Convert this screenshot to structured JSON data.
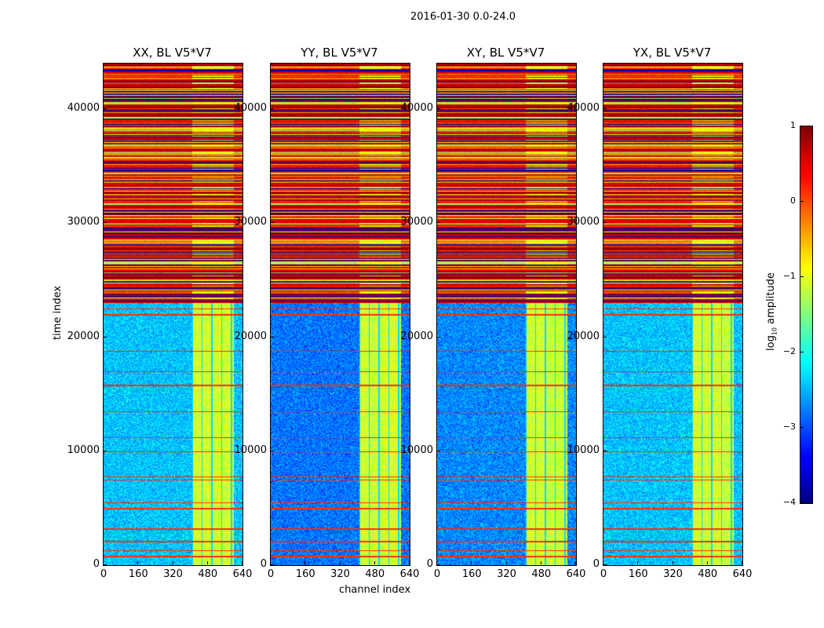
{
  "suptitle": "2016-01-30 0.0-24.0",
  "chart_data": {
    "type": "heatmap",
    "title": "2016-01-30 0.0-24.0",
    "xlabel": "channel index",
    "ylabel": "time index",
    "xlim": [
      0,
      640
    ],
    "ylim": [
      0,
      44000
    ],
    "xticks": [
      0,
      160,
      320,
      480,
      640
    ],
    "yticks": [
      0,
      10000,
      20000,
      30000,
      40000
    ],
    "panels": [
      {
        "title": "XX, BL V5*V7",
        "quiet_level": -2.4
      },
      {
        "title": "YY, BL V5*V7",
        "quiet_level": -2.8
      },
      {
        "title": "XY, BL V5*V7",
        "quiet_level": -2.7
      },
      {
        "title": "YX, BL V5*V7",
        "quiet_level": -2.4
      }
    ],
    "rfi_channel_range": [
      405,
      600
    ],
    "flagged_time_start": 23000,
    "rfi_time_lines": [
      800,
      1300,
      2100,
      3200,
      5000,
      5500,
      7500,
      7800,
      10000,
      11200,
      13500,
      15800,
      17000,
      18800,
      22000,
      22500
    ],
    "colorbar": {
      "label": "log10 amplitude",
      "range": [
        -4,
        1
      ],
      "ticks": [
        1,
        0,
        -1,
        -2,
        -3,
        -4
      ],
      "tick_labels": [
        "1",
        "0",
        "−1",
        "−2",
        "−3",
        "−4"
      ],
      "colormap": "jet"
    }
  }
}
